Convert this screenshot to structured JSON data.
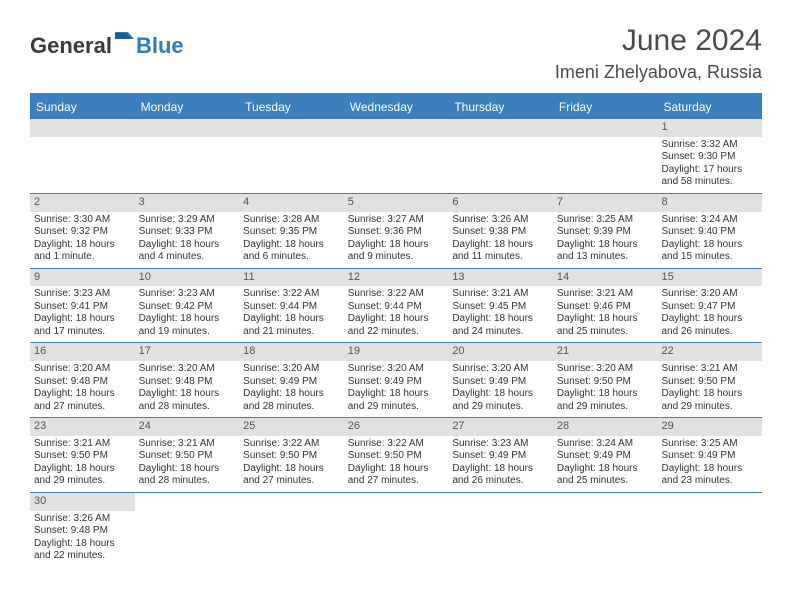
{
  "logo": {
    "text1": "General",
    "text2": "Blue"
  },
  "title": "June 2024",
  "location": "Imeni Zhelyabova, Russia",
  "colors": {
    "header_bar": "#3b7fbf",
    "header_text": "#ffffff",
    "daybar_bg": "#e1e1e1",
    "text": "#333333",
    "accent": "#2d7bc0"
  },
  "weekdays": [
    "Sunday",
    "Monday",
    "Tuesday",
    "Wednesday",
    "Thursday",
    "Friday",
    "Saturday"
  ],
  "weeks": [
    [
      null,
      null,
      null,
      null,
      null,
      null,
      {
        "n": "1",
        "sr": "Sunrise: 3:32 AM",
        "ss": "Sunset: 9:30 PM",
        "d1": "Daylight: 17 hours",
        "d2": "and 58 minutes."
      }
    ],
    [
      {
        "n": "2",
        "sr": "Sunrise: 3:30 AM",
        "ss": "Sunset: 9:32 PM",
        "d1": "Daylight: 18 hours",
        "d2": "and 1 minute."
      },
      {
        "n": "3",
        "sr": "Sunrise: 3:29 AM",
        "ss": "Sunset: 9:33 PM",
        "d1": "Daylight: 18 hours",
        "d2": "and 4 minutes."
      },
      {
        "n": "4",
        "sr": "Sunrise: 3:28 AM",
        "ss": "Sunset: 9:35 PM",
        "d1": "Daylight: 18 hours",
        "d2": "and 6 minutes."
      },
      {
        "n": "5",
        "sr": "Sunrise: 3:27 AM",
        "ss": "Sunset: 9:36 PM",
        "d1": "Daylight: 18 hours",
        "d2": "and 9 minutes."
      },
      {
        "n": "6",
        "sr": "Sunrise: 3:26 AM",
        "ss": "Sunset: 9:38 PM",
        "d1": "Daylight: 18 hours",
        "d2": "and 11 minutes."
      },
      {
        "n": "7",
        "sr": "Sunrise: 3:25 AM",
        "ss": "Sunset: 9:39 PM",
        "d1": "Daylight: 18 hours",
        "d2": "and 13 minutes."
      },
      {
        "n": "8",
        "sr": "Sunrise: 3:24 AM",
        "ss": "Sunset: 9:40 PM",
        "d1": "Daylight: 18 hours",
        "d2": "and 15 minutes."
      }
    ],
    [
      {
        "n": "9",
        "sr": "Sunrise: 3:23 AM",
        "ss": "Sunset: 9:41 PM",
        "d1": "Daylight: 18 hours",
        "d2": "and 17 minutes."
      },
      {
        "n": "10",
        "sr": "Sunrise: 3:23 AM",
        "ss": "Sunset: 9:42 PM",
        "d1": "Daylight: 18 hours",
        "d2": "and 19 minutes."
      },
      {
        "n": "11",
        "sr": "Sunrise: 3:22 AM",
        "ss": "Sunset: 9:44 PM",
        "d1": "Daylight: 18 hours",
        "d2": "and 21 minutes."
      },
      {
        "n": "12",
        "sr": "Sunrise: 3:22 AM",
        "ss": "Sunset: 9:44 PM",
        "d1": "Daylight: 18 hours",
        "d2": "and 22 minutes."
      },
      {
        "n": "13",
        "sr": "Sunrise: 3:21 AM",
        "ss": "Sunset: 9:45 PM",
        "d1": "Daylight: 18 hours",
        "d2": "and 24 minutes."
      },
      {
        "n": "14",
        "sr": "Sunrise: 3:21 AM",
        "ss": "Sunset: 9:46 PM",
        "d1": "Daylight: 18 hours",
        "d2": "and 25 minutes."
      },
      {
        "n": "15",
        "sr": "Sunrise: 3:20 AM",
        "ss": "Sunset: 9:47 PM",
        "d1": "Daylight: 18 hours",
        "d2": "and 26 minutes."
      }
    ],
    [
      {
        "n": "16",
        "sr": "Sunrise: 3:20 AM",
        "ss": "Sunset: 9:48 PM",
        "d1": "Daylight: 18 hours",
        "d2": "and 27 minutes."
      },
      {
        "n": "17",
        "sr": "Sunrise: 3:20 AM",
        "ss": "Sunset: 9:48 PM",
        "d1": "Daylight: 18 hours",
        "d2": "and 28 minutes."
      },
      {
        "n": "18",
        "sr": "Sunrise: 3:20 AM",
        "ss": "Sunset: 9:49 PM",
        "d1": "Daylight: 18 hours",
        "d2": "and 28 minutes."
      },
      {
        "n": "19",
        "sr": "Sunrise: 3:20 AM",
        "ss": "Sunset: 9:49 PM",
        "d1": "Daylight: 18 hours",
        "d2": "and 29 minutes."
      },
      {
        "n": "20",
        "sr": "Sunrise: 3:20 AM",
        "ss": "Sunset: 9:49 PM",
        "d1": "Daylight: 18 hours",
        "d2": "and 29 minutes."
      },
      {
        "n": "21",
        "sr": "Sunrise: 3:20 AM",
        "ss": "Sunset: 9:50 PM",
        "d1": "Daylight: 18 hours",
        "d2": "and 29 minutes."
      },
      {
        "n": "22",
        "sr": "Sunrise: 3:21 AM",
        "ss": "Sunset: 9:50 PM",
        "d1": "Daylight: 18 hours",
        "d2": "and 29 minutes."
      }
    ],
    [
      {
        "n": "23",
        "sr": "Sunrise: 3:21 AM",
        "ss": "Sunset: 9:50 PM",
        "d1": "Daylight: 18 hours",
        "d2": "and 29 minutes."
      },
      {
        "n": "24",
        "sr": "Sunrise: 3:21 AM",
        "ss": "Sunset: 9:50 PM",
        "d1": "Daylight: 18 hours",
        "d2": "and 28 minutes."
      },
      {
        "n": "25",
        "sr": "Sunrise: 3:22 AM",
        "ss": "Sunset: 9:50 PM",
        "d1": "Daylight: 18 hours",
        "d2": "and 27 minutes."
      },
      {
        "n": "26",
        "sr": "Sunrise: 3:22 AM",
        "ss": "Sunset: 9:50 PM",
        "d1": "Daylight: 18 hours",
        "d2": "and 27 minutes."
      },
      {
        "n": "27",
        "sr": "Sunrise: 3:23 AM",
        "ss": "Sunset: 9:49 PM",
        "d1": "Daylight: 18 hours",
        "d2": "and 26 minutes."
      },
      {
        "n": "28",
        "sr": "Sunrise: 3:24 AM",
        "ss": "Sunset: 9:49 PM",
        "d1": "Daylight: 18 hours",
        "d2": "and 25 minutes."
      },
      {
        "n": "29",
        "sr": "Sunrise: 3:25 AM",
        "ss": "Sunset: 9:49 PM",
        "d1": "Daylight: 18 hours",
        "d2": "and 23 minutes."
      }
    ],
    [
      {
        "n": "30",
        "sr": "Sunrise: 3:26 AM",
        "ss": "Sunset: 9:48 PM",
        "d1": "Daylight: 18 hours",
        "d2": "and 22 minutes."
      },
      null,
      null,
      null,
      null,
      null,
      null
    ]
  ]
}
